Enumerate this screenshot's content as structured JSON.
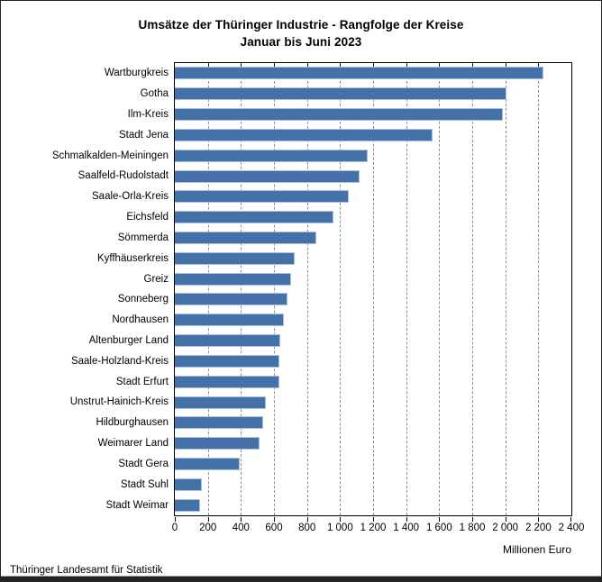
{
  "title": "Umsätze der Thüringer Industrie - Rangfolge der Kreise",
  "subtitle": "Januar bis Juni 2023",
  "source": "Thüringer Landesamt für Statistik",
  "colors": {
    "bar": "#4472a8",
    "bar_border": "#abc1dd",
    "grid": "#8f8f8f",
    "axis": "#000000",
    "footer_bar": "#212121"
  },
  "chart_data": {
    "type": "bar",
    "orientation": "horizontal",
    "title": "Umsätze der Thüringer Industrie - Rangfolge der Kreise",
    "subtitle": "Januar bis Juni 2023",
    "xlabel": "Millionen Euro",
    "ylabel": "",
    "xlim": [
      0,
      2400
    ],
    "xtick_interval": 200,
    "xtick_labels": [
      "0",
      "200",
      "400",
      "600",
      "800",
      "1 000",
      "1 200",
      "1 400",
      "1 600",
      "1 800",
      "2 000",
      "2 200",
      "2 400"
    ],
    "grid": true,
    "legend_position": "none",
    "categories": [
      "Wartburgkreis",
      "Gotha",
      "Ilm-Kreis",
      "Stadt Jena",
      "Schmalkalden-Meiningen",
      "Saalfeld-Rudolstadt",
      "Saale-Orla-Kreis",
      "Eichsfeld",
      "Sömmerda",
      "Kyffhäuserkreis",
      "Greiz",
      "Sonneberg",
      "Nordhausen",
      "Altenburger Land",
      "Saale-Holzland-Kreis",
      "Stadt Erfurt",
      "Unstrut-Hainich-Kreis",
      "Hildburghausen",
      "Weimarer Land",
      "Stadt Gera",
      "Stadt Suhl",
      "Stadt Weimar"
    ],
    "values": [
      2230,
      2005,
      1985,
      1560,
      1165,
      1120,
      1050,
      960,
      855,
      725,
      705,
      680,
      660,
      640,
      635,
      630,
      550,
      535,
      515,
      395,
      165,
      155
    ]
  }
}
